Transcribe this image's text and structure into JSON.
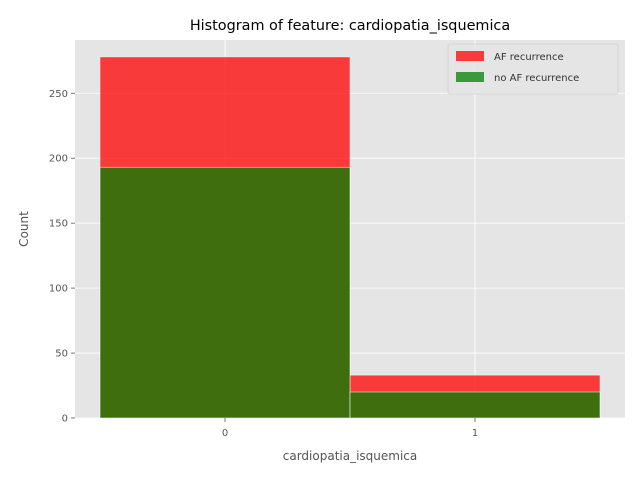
{
  "chart_data": {
    "type": "bar",
    "title": "Histogram of feature: cardiopatia_isquemica",
    "xlabel": "cardiopatia_isquemica",
    "ylabel": "Count",
    "categories": [
      "0",
      "1"
    ],
    "series": [
      {
        "name": "AF recurrence",
        "values": [
          278,
          33
        ],
        "color": "#ff0000",
        "opacity": 0.75
      },
      {
        "name": "no AF recurrence",
        "values": [
          193,
          20
        ],
        "color": "#008000",
        "opacity": 0.75
      }
    ],
    "ylim": [
      0,
      291
    ],
    "yticks": [
      0,
      50,
      100,
      150,
      200,
      250
    ],
    "grid": true,
    "legend": "top-right",
    "style": {
      "background": "#e5e5e5",
      "grid_color": "#ffffff",
      "text_color": "#555555"
    }
  }
}
